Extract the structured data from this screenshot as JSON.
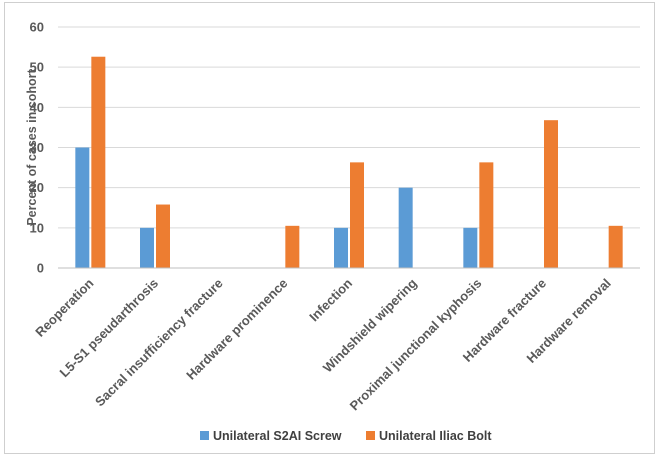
{
  "chart_data": {
    "type": "bar",
    "title": "",
    "xlabel": "",
    "ylabel": "Percent of cases in cohort",
    "ylim": [
      0,
      60
    ],
    "yticks": [
      0,
      10,
      20,
      30,
      40,
      50,
      60
    ],
    "grid": true,
    "legend_position": "bottom",
    "categories": [
      "Reoperation",
      "L5-S1 pseudarthrosis",
      "Sacral insufficiency fracture",
      "Hardware prominence",
      "Infection",
      "Windshield wipering",
      "Proximal junctional kyphosis",
      "Hardware fracture",
      "Hardware removal"
    ],
    "series": [
      {
        "name": "Unilateral S2AI Screw",
        "color": "#5b9bd5",
        "values": [
          30,
          10,
          0,
          0,
          10,
          20,
          10,
          0,
          0
        ]
      },
      {
        "name": "Unilateral Iliac Bolt",
        "color": "#ed7d31",
        "values": [
          52.6,
          15.8,
          0,
          10.5,
          26.3,
          0,
          26.3,
          36.8,
          10.5
        ]
      }
    ]
  }
}
